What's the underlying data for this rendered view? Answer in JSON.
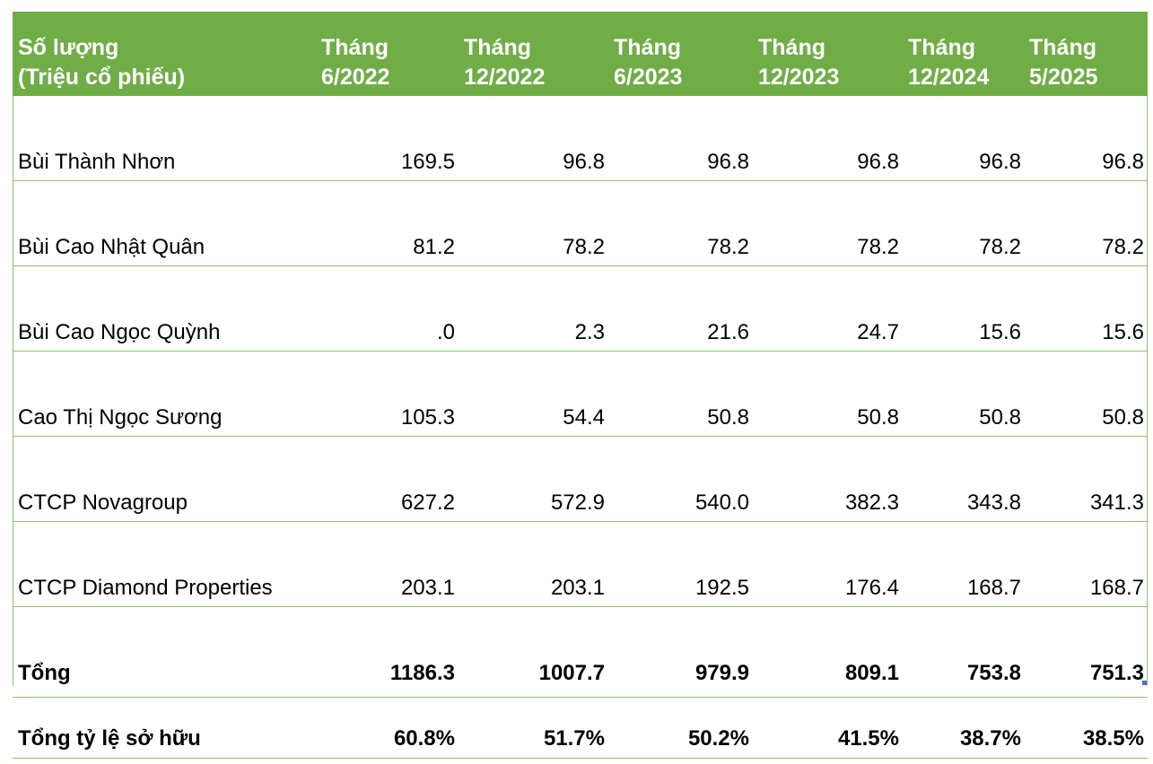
{
  "header": {
    "first_col": [
      "Số lượng",
      "(Triệu cổ phiếu)"
    ],
    "periods": [
      [
        "Tháng",
        "6/2022"
      ],
      [
        "Tháng",
        "12/2022"
      ],
      [
        "Tháng",
        "6/2023"
      ],
      [
        "Tháng",
        "12/2023"
      ],
      [
        "Tháng",
        "12/2024"
      ],
      [
        "Tháng",
        "5/2025"
      ]
    ]
  },
  "rows": [
    {
      "name": "Bùi Thành Nhơn",
      "values": [
        "169.5",
        "96.8",
        "96.8",
        "96.8",
        "96.8",
        "96.8"
      ]
    },
    {
      "name": "Bùi Cao Nhật Quân",
      "values": [
        "81.2",
        "78.2",
        "78.2",
        "78.2",
        "78.2",
        "78.2"
      ]
    },
    {
      "name": "Bùi Cao Ngọc Quỳnh",
      "values": [
        ".0",
        "2.3",
        "21.6",
        "24.7",
        "15.6",
        "15.6"
      ]
    },
    {
      "name": "Cao Thị Ngọc Sương",
      "values": [
        "105.3",
        "54.4",
        "50.8",
        "50.8",
        "50.8",
        "50.8"
      ]
    },
    {
      "name": "CTCP Novagroup",
      "values": [
        "627.2",
        "572.9",
        "540.0",
        "382.3",
        "343.8",
        "341.3"
      ]
    },
    {
      "name": "CTCP Diamond Properties",
      "values": [
        "203.1",
        "203.1",
        "192.5",
        "176.4",
        "168.7",
        "168.7"
      ]
    }
  ],
  "total": {
    "name": "Tổng",
    "values": [
      "1186.3",
      "1007.7",
      "979.9",
      "809.1",
      "753.8",
      "751.3"
    ]
  },
  "ratio": {
    "name": "Tổng tỷ lệ sở hữu",
    "values": [
      "60.8%",
      "51.7%",
      "50.2%",
      "41.5%",
      "38.7%",
      "38.5%"
    ]
  },
  "colors": {
    "header_bg": "#70ad47",
    "border": "#8cc168",
    "header_text": "#ffffff"
  }
}
